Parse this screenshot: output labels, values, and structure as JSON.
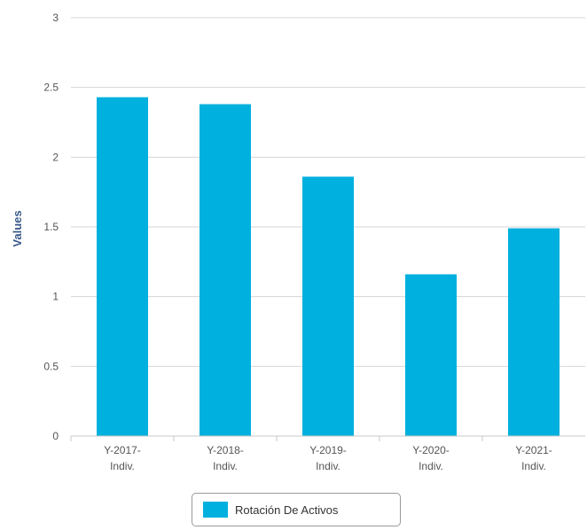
{
  "chart_data": {
    "type": "bar",
    "categories": [
      [
        "Y-2017-",
        "Indiv."
      ],
      [
        "Y-2018-",
        "Indiv."
      ],
      [
        "Y-2019-",
        "Indiv."
      ],
      [
        "Y-2020-",
        "Indiv."
      ],
      [
        "Y-2021-",
        "Indiv."
      ]
    ],
    "series": [
      {
        "name": "Rotación De Activos",
        "color": "#00b0de",
        "values": [
          2.43,
          2.38,
          1.86,
          1.16,
          1.49
        ]
      }
    ],
    "ylabel": "Values",
    "yticks": [
      "0",
      "0.5",
      "1",
      "1.5",
      "2",
      "2.5",
      "3"
    ],
    "ylim": [
      0,
      3
    ],
    "grid": true,
    "legend_position": "bottom-center"
  }
}
